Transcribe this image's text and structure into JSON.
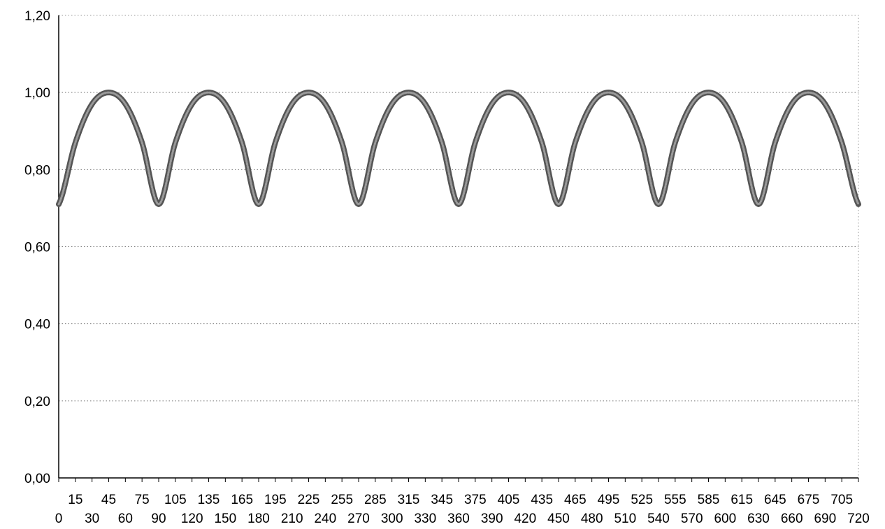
{
  "chart_data": {
    "type": "line",
    "title": "",
    "xlabel": "",
    "ylabel": "",
    "ylim": [
      0,
      1.2
    ],
    "xlim": [
      0,
      720
    ],
    "y_ticks": [
      "0,00",
      "0,20",
      "0,40",
      "0,60",
      "0,80",
      "1,00",
      "1,20"
    ],
    "x_ticks_upper": [
      "15",
      "45",
      "75",
      "105",
      "135",
      "165",
      "195",
      "225",
      "255",
      "285",
      "315",
      "345",
      "375",
      "405",
      "435",
      "465",
      "495",
      "525",
      "555",
      "585",
      "615",
      "645",
      "675",
      "705"
    ],
    "x_ticks_lower": [
      "0",
      "30",
      "60",
      "90",
      "120",
      "150",
      "180",
      "210",
      "240",
      "270",
      "300",
      "330",
      "360",
      "390",
      "420",
      "450",
      "480",
      "510",
      "540",
      "570",
      "600",
      "630",
      "660",
      "690",
      "720"
    ],
    "grid": true,
    "legend": "none",
    "line_color": "#555555",
    "series": [
      {
        "x": [
          0,
          15,
          30,
          45,
          60,
          75,
          90,
          105,
          120,
          135,
          150,
          165,
          180,
          195,
          210,
          225,
          240,
          255,
          270,
          285,
          300,
          315,
          330,
          345,
          360,
          375,
          390,
          405,
          420,
          435,
          450,
          465,
          480,
          495,
          510,
          525,
          540,
          555,
          570,
          585,
          600,
          615,
          630,
          645,
          660,
          675,
          690,
          705,
          720
        ],
        "values": [
          0.71,
          0.87,
          0.97,
          1.0,
          0.97,
          0.87,
          0.71,
          0.87,
          0.97,
          1.0,
          0.97,
          0.87,
          0.71,
          0.87,
          0.97,
          1.0,
          0.97,
          0.87,
          0.71,
          0.87,
          0.97,
          1.0,
          0.97,
          0.87,
          0.71,
          0.87,
          0.97,
          1.0,
          0.97,
          0.87,
          0.71,
          0.87,
          0.97,
          1.0,
          0.97,
          0.87,
          0.71,
          0.87,
          0.97,
          1.0,
          0.97,
          0.87,
          0.71,
          0.87,
          0.97,
          1.0,
          0.97,
          0.87,
          0.71
        ]
      }
    ]
  }
}
